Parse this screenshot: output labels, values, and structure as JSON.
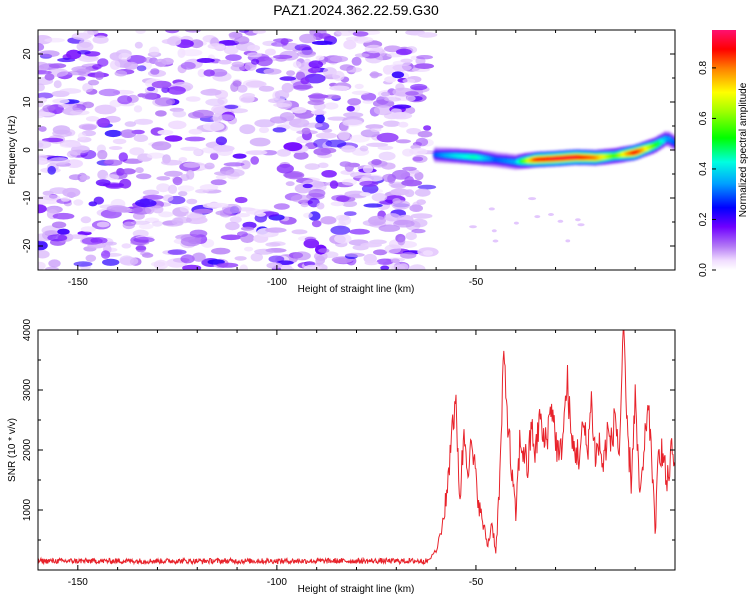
{
  "title": "PAZ1.2024.362.22.59.G30",
  "chart_data": [
    {
      "type": "heatmap",
      "xlabel": "Height of straight line (km)",
      "ylabel": "Frequency (Hz)",
      "xlim": [
        -160,
        0
      ],
      "ylim": [
        -25,
        25
      ],
      "xticks": [
        -150,
        -100,
        -50
      ],
      "xtick_labels": [
        "-150",
        "-100",
        "-50"
      ],
      "yticks": [
        -20,
        -10,
        0,
        10,
        20
      ],
      "ytick_labels": [
        "-20",
        "-10",
        "0",
        "10",
        "20"
      ],
      "colorbar": {
        "label": "Normalized spectral amplitude",
        "range": [
          0.0,
          0.95
        ],
        "ticks": [
          0.0,
          0.2,
          0.4,
          0.6,
          0.8
        ],
        "tick_labels": [
          "0.0",
          "0.2",
          "0.4",
          "0.6",
          "0.8"
        ],
        "colormap": "rainbow (purple-blue-cyan-green-yellow-red-magenta)"
      },
      "signal_track": {
        "x": [
          -60,
          -55,
          -50,
          -45,
          -40,
          -35,
          -30,
          -25,
          -20,
          -15,
          -10,
          -5,
          -2,
          0
        ],
        "freq": [
          -1.0,
          -1.2,
          -1.5,
          -2.0,
          -2.5,
          -2.0,
          -1.8,
          -1.5,
          -1.6,
          -1.2,
          -0.5,
          1.0,
          2.5,
          1.5
        ],
        "amplitude": [
          0.3,
          0.4,
          0.45,
          0.3,
          0.35,
          0.85,
          0.9,
          0.9,
          0.8,
          0.55,
          0.9,
          0.55,
          0.35,
          0.3
        ]
      },
      "noise_region": {
        "x_range": [
          -160,
          -62
        ],
        "freq_range": [
          -25,
          25
        ],
        "amplitude_range": [
          0.0,
          0.25
        ]
      }
    },
    {
      "type": "line",
      "xlabel": "Height of straight line (km)",
      "ylabel": "SNR (10 * v/v)",
      "xlim": [
        -160,
        0
      ],
      "ylim": [
        0,
        4000
      ],
      "xticks": [
        -150,
        -100,
        -50
      ],
      "xtick_labels": [
        "-150",
        "-100",
        "-50"
      ],
      "yticks": [
        1000,
        2000,
        3000,
        4000
      ],
      "ytick_labels": [
        "1000",
        "2000",
        "3000",
        "4000"
      ],
      "color": "#e8232b",
      "series": [
        {
          "x": [
            -160,
            -150,
            -140,
            -130,
            -120,
            -110,
            -100,
            -90,
            -80,
            -70,
            -62,
            -60,
            -58,
            -57,
            -56,
            -55,
            -54,
            -53,
            -52,
            -51,
            -50,
            -49,
            -48,
            -47,
            -46,
            -45,
            -44,
            -43,
            -42,
            -41,
            -40,
            -39,
            -38,
            -37,
            -36,
            -35,
            -34,
            -33,
            -32,
            -31,
            -30,
            -29,
            -28,
            -27,
            -26,
            -25,
            -24,
            -23,
            -22,
            -21,
            -20,
            -19,
            -18,
            -17,
            -16,
            -15,
            -14,
            -13,
            -12,
            -11,
            -10,
            -9,
            -8,
            -7,
            -6,
            -5,
            -4,
            -3,
            -2,
            -1,
            0
          ],
          "y": [
            150,
            140,
            160,
            150,
            145,
            155,
            150,
            160,
            150,
            145,
            170,
            300,
            900,
            1500,
            2500,
            2650,
            1200,
            2300,
            1800,
            2000,
            1500,
            1000,
            700,
            400,
            800,
            300,
            1500,
            3600,
            2500,
            1600,
            900,
            2100,
            2000,
            1700,
            2400,
            1900,
            2600,
            2100,
            2300,
            2800,
            2200,
            1800,
            2400,
            3150,
            2100,
            2000,
            1900,
            2400,
            2000,
            2800,
            1900,
            2100,
            1700,
            2300,
            2100,
            2600,
            1900,
            4000,
            2300,
            1500,
            2900,
            1300,
            1600,
            2700,
            2200,
            600,
            2100,
            1900,
            1400,
            1950,
            1800
          ]
        }
      ]
    }
  ]
}
